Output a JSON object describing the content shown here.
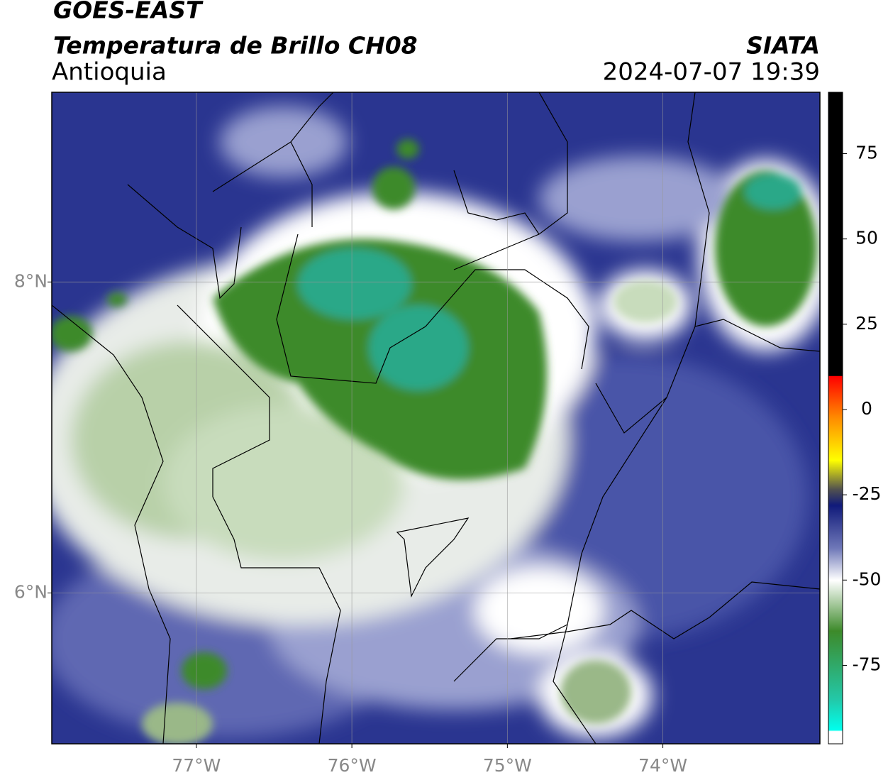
{
  "map": {
    "title": "GOES-EAST",
    "subtitle": "Temperatura de Brillo CH08",
    "region": "Antioquia",
    "source": "SIATA",
    "datetime": "2024-07-07 19:39",
    "xlim": [
      -77.93,
      -72.99
    ],
    "ylim": [
      5.03,
      9.22
    ],
    "xticks": [
      {
        "value": -77,
        "label": "77°W"
      },
      {
        "value": -76,
        "label": "76°W"
      },
      {
        "value": -75,
        "label": "75°W"
      },
      {
        "value": -74,
        "label": "74°W"
      }
    ],
    "yticks": [
      {
        "value": 6,
        "label": "6°N"
      },
      {
        "value": 8,
        "label": "8°N"
      }
    ],
    "grid": true,
    "colorbar": {
      "lim": [
        -98,
        93
      ],
      "ticks": [
        75,
        50,
        25,
        0,
        -25,
        -50,
        -75
      ]
    }
  }
}
